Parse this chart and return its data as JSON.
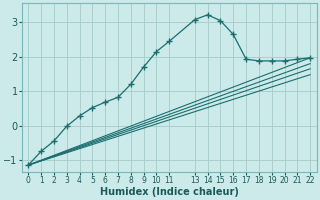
{
  "bg_color": "#cceaea",
  "grid_color": "#aacfcf",
  "line_color": "#1a6e6e",
  "xlabel": "Humidex (Indice chaleur)",
  "xlim": [
    -0.5,
    22.5
  ],
  "ylim": [
    -1.35,
    3.55
  ],
  "yticks": [
    -1,
    0,
    1,
    2,
    3
  ],
  "xticks": [
    0,
    1,
    2,
    3,
    4,
    5,
    6,
    7,
    8,
    9,
    10,
    11,
    13,
    14,
    15,
    16,
    17,
    18,
    19,
    20,
    21,
    22
  ],
  "curve_x": [
    0,
    1,
    2,
    3,
    4,
    5,
    6,
    7,
    8,
    9,
    10,
    11,
    13,
    14,
    15,
    16,
    17,
    18,
    19,
    20,
    21,
    22
  ],
  "curve_y": [
    -1.15,
    -0.75,
    -0.45,
    -0.02,
    0.28,
    0.52,
    0.68,
    0.82,
    1.2,
    1.7,
    2.15,
    2.45,
    3.08,
    3.22,
    3.05,
    2.65,
    1.93,
    1.88,
    1.88,
    1.88,
    1.93,
    1.97
  ],
  "lin_lines": [
    {
      "x": [
        0,
        22
      ],
      "y": [
        -1.15,
        1.97
      ]
    },
    {
      "x": [
        0,
        22
      ],
      "y": [
        -1.15,
        1.8
      ]
    },
    {
      "x": [
        0,
        22
      ],
      "y": [
        -1.15,
        1.65
      ]
    },
    {
      "x": [
        0,
        22
      ],
      "y": [
        -1.15,
        1.48
      ]
    }
  ]
}
